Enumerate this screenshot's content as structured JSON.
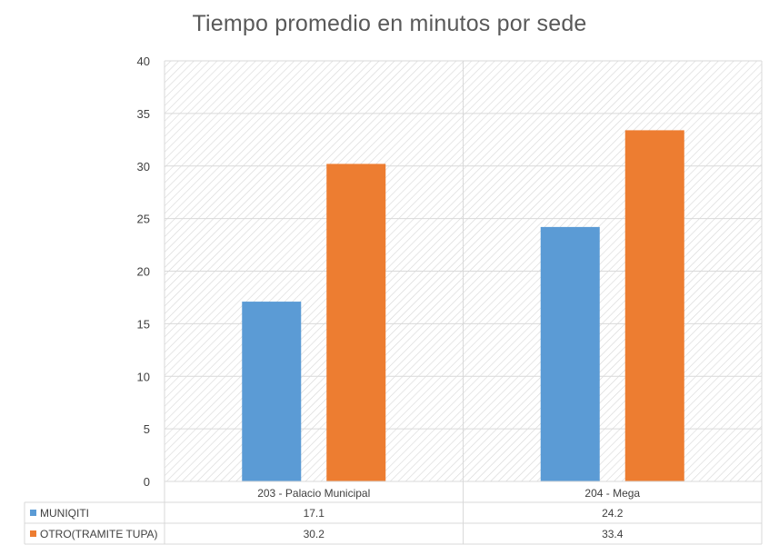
{
  "chart_data": {
    "type": "bar",
    "title": "Tiempo promedio en minutos por sede",
    "categories": [
      "203 - Palacio Municipal",
      "204 - Mega"
    ],
    "series": [
      {
        "name": "MUNIQITI",
        "values": [
          17.1,
          24.2
        ],
        "color": "#5B9BD5"
      },
      {
        "name": "OTRO(TRAMITE TUPA)",
        "values": [
          30.2,
          33.4
        ],
        "color": "#ED7D31"
      }
    ],
    "ylim": [
      0,
      40
    ],
    "yticks": [
      0,
      5,
      10,
      15,
      20,
      25,
      30,
      35,
      40
    ],
    "grid": true,
    "legend": "data-table-below",
    "data_table": true
  }
}
